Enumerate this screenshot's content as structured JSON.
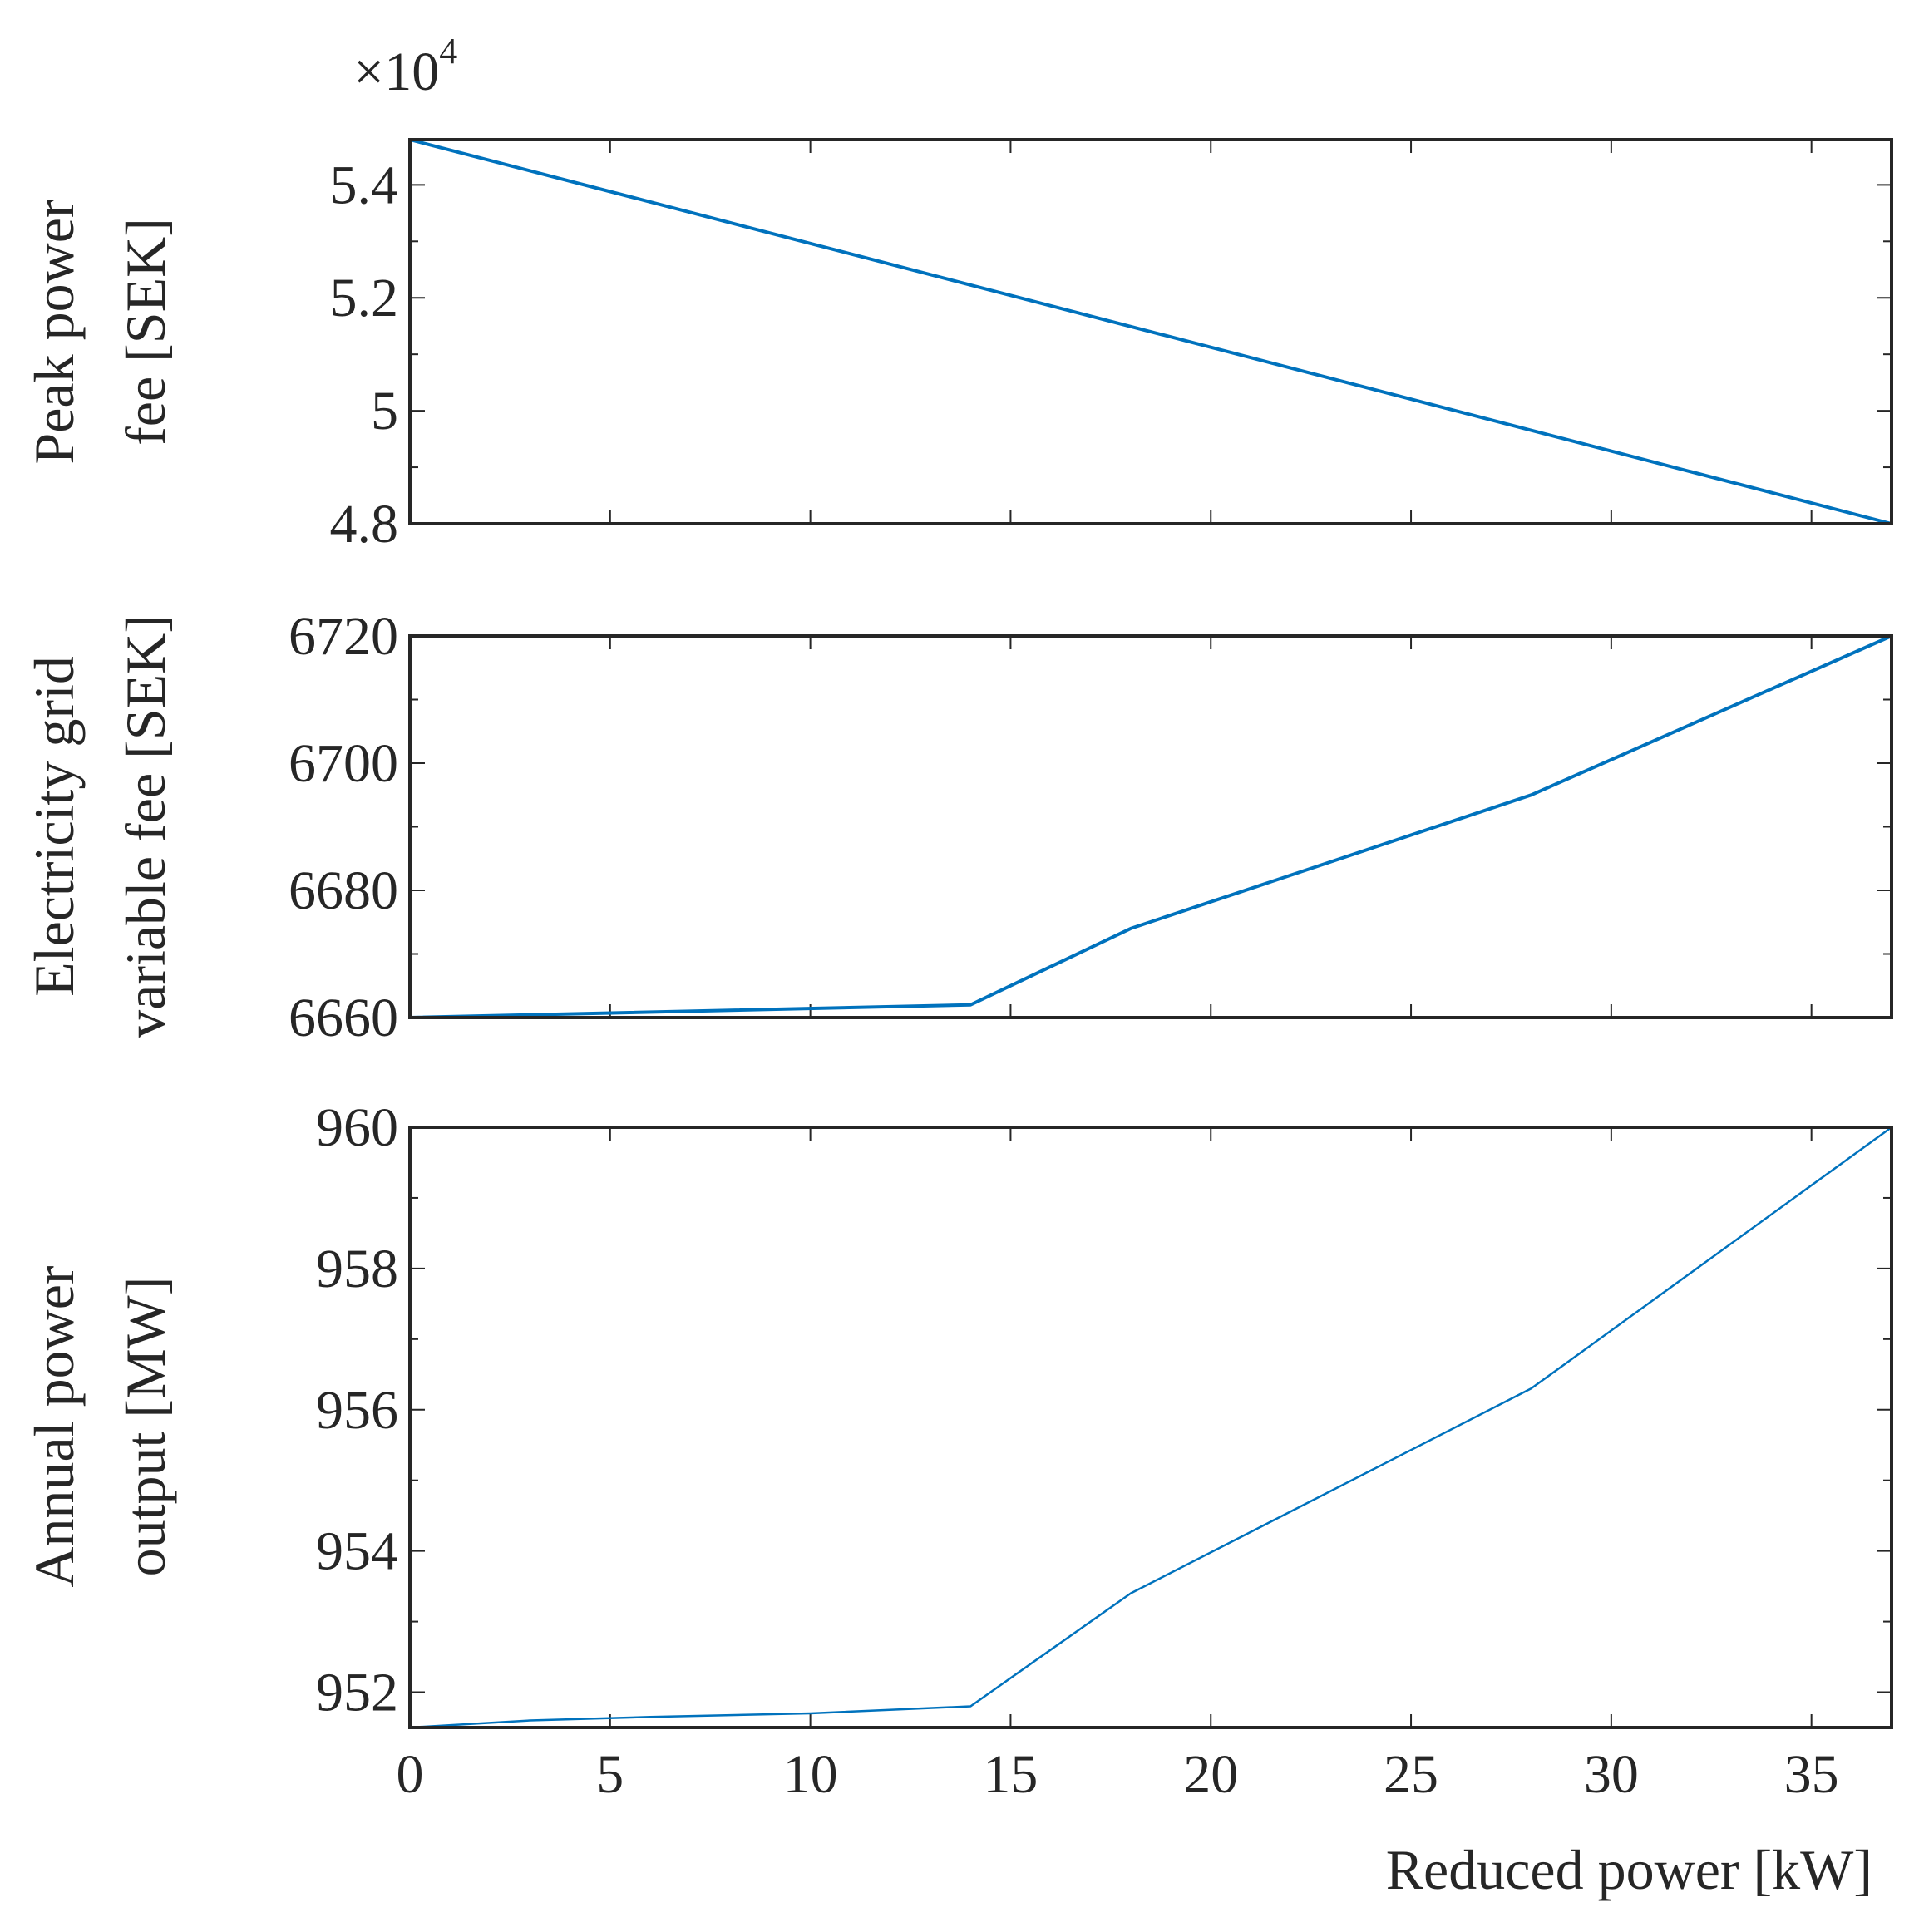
{
  "chart_data": [
    {
      "type": "line",
      "ylabel_lines": [
        "Peak power",
        "fee [SEK]"
      ],
      "exponent_base": "×10",
      "exponent_power": "4",
      "ylim": [
        4.8,
        5.48
      ],
      "xlim": [
        0,
        37
      ],
      "yticks": [
        4.8,
        5.0,
        5.2,
        5.4
      ],
      "ytick_labels": [
        "4.8",
        "5",
        "5.2",
        "5.4"
      ],
      "series": [
        {
          "name": "Peak power fee",
          "color": "#0072BD",
          "x": [
            0,
            37
          ],
          "y": [
            5.48,
            4.8
          ]
        }
      ]
    },
    {
      "type": "line",
      "ylabel_lines": [
        "Electricity grid",
        "variable fee [SEK]"
      ],
      "ylim": [
        6660,
        6720
      ],
      "xlim": [
        0,
        37
      ],
      "yticks": [
        6660,
        6680,
        6700,
        6720
      ],
      "ytick_labels": [
        "6660",
        "6680",
        "6700",
        "6720"
      ],
      "series": [
        {
          "name": "Electricity grid variable fee",
          "color": "#0072BD",
          "x": [
            0,
            14,
            18,
            28,
            37
          ],
          "y": [
            6660,
            6662,
            6674,
            6695,
            6720
          ]
        }
      ]
    },
    {
      "type": "line",
      "ylabel_lines": [
        "Annual power",
        "output [MW]"
      ],
      "ylim": [
        951.5,
        960
      ],
      "xlim": [
        0,
        37
      ],
      "yticks": [
        952,
        954,
        956,
        958,
        960
      ],
      "ytick_labels": [
        "952",
        "954",
        "956",
        "958",
        "960"
      ],
      "xticks": [
        0,
        5,
        10,
        15,
        20,
        25,
        30,
        35
      ],
      "xtick_labels": [
        "0",
        "5",
        "10",
        "15",
        "20",
        "25",
        "30",
        "35"
      ],
      "xlabel": "Reduced power [kW]",
      "series": [
        {
          "name": "Annual power output",
          "color": "#0072BD",
          "x": [
            0,
            3,
            6,
            10,
            14,
            18,
            28,
            37
          ],
          "y": [
            951.5,
            951.6,
            951.65,
            951.7,
            951.8,
            953.4,
            956.3,
            960
          ]
        }
      ]
    }
  ]
}
